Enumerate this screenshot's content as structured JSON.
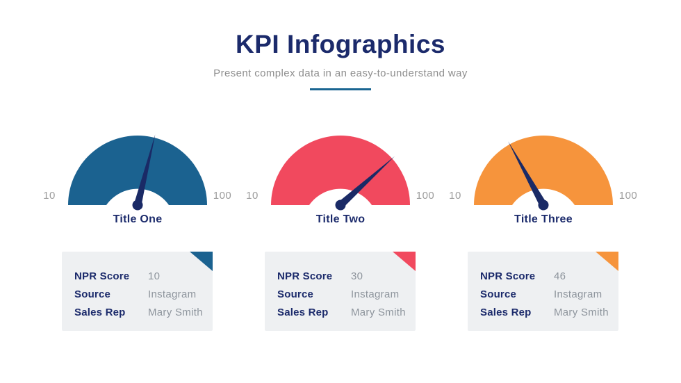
{
  "slide": {
    "title": "KPI Infographics",
    "subtitle": "Present complex data in an easy-to-understand way"
  },
  "colors": {
    "heading_navy": "#1B2A6B",
    "needle_navy": "#1A2A66",
    "subtitle_gray": "#8E8E8E",
    "scale_gray": "#9C9C9C",
    "value_gray": "#8E959D",
    "card_background": "#EEF0F2",
    "underline_teal": "#1A6591",
    "gauge_teal": "#1B6290",
    "gauge_red": "#F1495E",
    "gauge_orange": "#F6943C"
  },
  "gauges": [
    {
      "title": "Title One",
      "min_label": "10",
      "max_label": "100",
      "color": "#1B6290",
      "needle_angle_deg": 14,
      "card": {
        "rows": [
          {
            "label": "NPR Score",
            "value": "10"
          },
          {
            "label": "Source",
            "value": "Instagram"
          },
          {
            "label": "Sales Rep",
            "value": "Mary Smith"
          }
        ]
      }
    },
    {
      "title": "Title Two",
      "min_label": "10",
      "max_label": "100",
      "color": "#F1495E",
      "needle_angle_deg": 48,
      "card": {
        "rows": [
          {
            "label": "NPR Score",
            "value": "30"
          },
          {
            "label": "Source",
            "value": "Instagram"
          },
          {
            "label": "Sales Rep",
            "value": "Mary Smith"
          }
        ]
      }
    },
    {
      "title": "Title Three",
      "min_label": "10",
      "max_label": "100",
      "color": "#F6943C",
      "needle_angle_deg": -29,
      "card": {
        "rows": [
          {
            "label": "NPR Score",
            "value": "46"
          },
          {
            "label": "Source",
            "value": "Instagram"
          },
          {
            "label": "Sales Rep",
            "value": "Mary Smith"
          }
        ]
      }
    }
  ],
  "chart_data": [
    {
      "type": "gauge",
      "title": "Title One",
      "min": 10,
      "max": 100,
      "value": 10,
      "color": "#1B6290",
      "details": {
        "NPR Score": "10",
        "Source": "Instagram",
        "Sales Rep": "Mary Smith"
      }
    },
    {
      "type": "gauge",
      "title": "Title Two",
      "min": 10,
      "max": 100,
      "value": 30,
      "color": "#F1495E",
      "details": {
        "NPR Score": "30",
        "Source": "Instagram",
        "Sales Rep": "Mary Smith"
      }
    },
    {
      "type": "gauge",
      "title": "Title Three",
      "min": 10,
      "max": 100,
      "value": 46,
      "color": "#F6943C",
      "details": {
        "NPR Score": "46",
        "Source": "Instagram",
        "Sales Rep": "Mary Smith"
      }
    }
  ]
}
